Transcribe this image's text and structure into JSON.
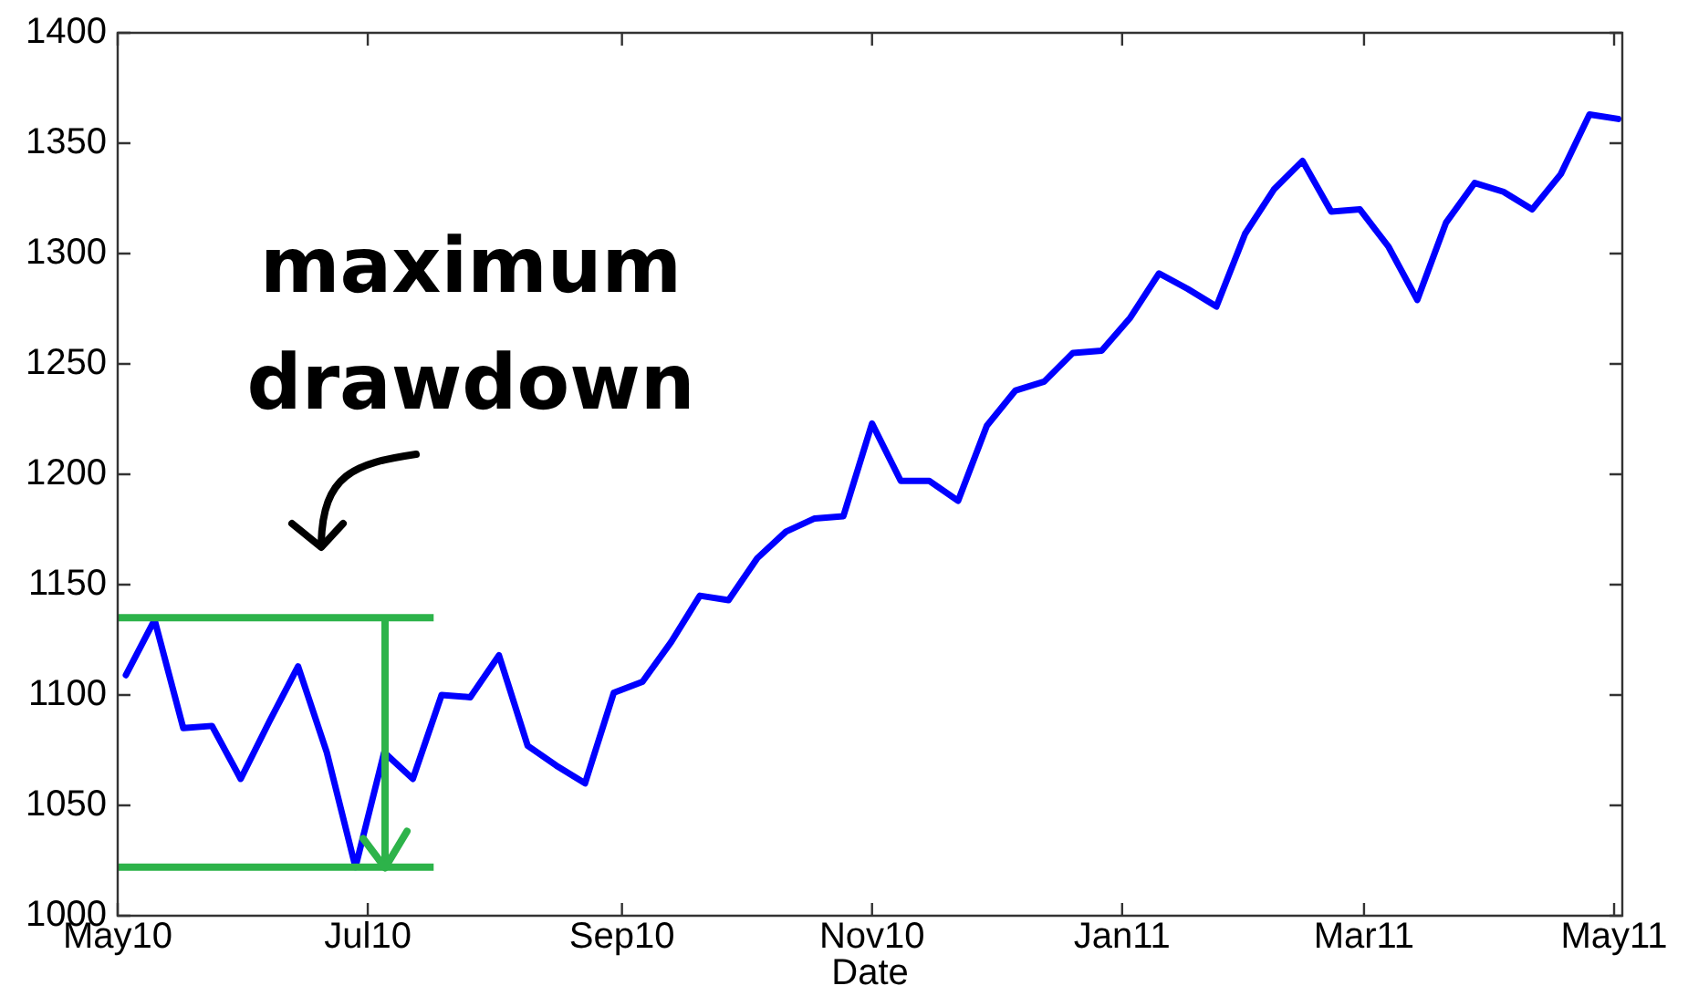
{
  "chart_data": {
    "type": "line",
    "xlabel": "Date",
    "annotations": [
      "maximum drawdown"
    ],
    "x": [
      "2010-05-03",
      "2010-05-10",
      "2010-05-17",
      "2010-05-24",
      "2010-05-31",
      "2010-06-07",
      "2010-06-14",
      "2010-06-21",
      "2010-06-28",
      "2010-07-05",
      "2010-07-12",
      "2010-07-19",
      "2010-07-26",
      "2010-08-02",
      "2010-08-09",
      "2010-08-16",
      "2010-08-23",
      "2010-08-30",
      "2010-09-06",
      "2010-09-13",
      "2010-09-20",
      "2010-09-27",
      "2010-10-04",
      "2010-10-11",
      "2010-10-18",
      "2010-10-25",
      "2010-11-01",
      "2010-11-08",
      "2010-11-15",
      "2010-11-22",
      "2010-11-29",
      "2010-12-06",
      "2010-12-13",
      "2010-12-20",
      "2010-12-27",
      "2011-01-03",
      "2011-01-10",
      "2011-01-17",
      "2011-01-24",
      "2011-01-31",
      "2011-02-07",
      "2011-02-14",
      "2011-02-21",
      "2011-02-28",
      "2011-03-07",
      "2011-03-14",
      "2011-03-21",
      "2011-03-28",
      "2011-04-04",
      "2011-04-11",
      "2011-04-18",
      "2011-04-25",
      "2011-05-02"
    ],
    "series": [
      {
        "color": "#0000ff",
        "values": [
          1109,
          1134,
          1085,
          1086,
          1062,
          1088,
          1113,
          1074,
          1022,
          1074,
          1062,
          1100,
          1099,
          1118,
          1077,
          1068,
          1060,
          1101,
          1106,
          1124,
          1145,
          1143,
          1162,
          1174,
          1180,
          1181,
          1223,
          1197,
          1197,
          1188,
          1222,
          1238,
          1242,
          1255,
          1256,
          1271,
          1291,
          1284,
          1276,
          1309,
          1329,
          1342,
          1319,
          1320,
          1303,
          1279,
          1314,
          1332,
          1328,
          1320,
          1336,
          1363,
          1361
        ]
      }
    ],
    "xlim": [
      "2010-05-01",
      "2011-05-03"
    ],
    "xticks": [
      {
        "value": "2010-05-01",
        "label": "May10"
      },
      {
        "value": "2010-07-01",
        "label": "Jul10"
      },
      {
        "value": "2010-09-01",
        "label": "Sep10"
      },
      {
        "value": "2010-11-01",
        "label": "Nov10"
      },
      {
        "value": "2011-01-01",
        "label": "Jan11"
      },
      {
        "value": "2011-03-01",
        "label": "Mar11"
      },
      {
        "value": "2011-05-01",
        "label": "May11"
      }
    ],
    "ylim": [
      1000,
      1400
    ],
    "yticks": [
      1000,
      1050,
      1100,
      1150,
      1200,
      1250,
      1300,
      1350,
      1400
    ],
    "ref_lines": [
      {
        "axis": "y",
        "value": 1135,
        "color": "#2db34a"
      },
      {
        "axis": "y",
        "value": 1022,
        "color": "#2db34a"
      }
    ],
    "grid": false,
    "legend": false,
    "line_style": "solid"
  }
}
